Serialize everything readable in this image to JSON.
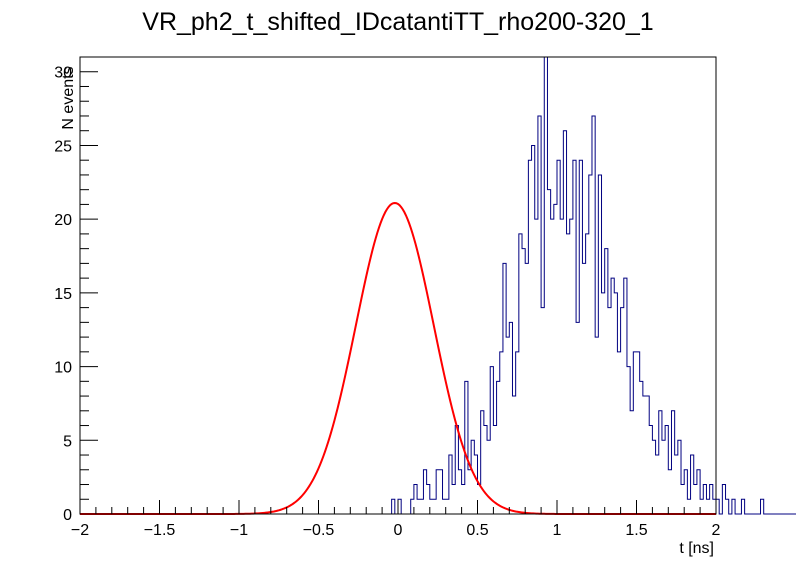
{
  "chart_data": {
    "type": "histogram",
    "title": "VR_ph2_t_shifted_IDcatantiTT_rho200-320_1",
    "xlabel": "t [ns]",
    "ylabel": "N events",
    "xlim": [
      -2,
      2
    ],
    "ylim": [
      0,
      31
    ],
    "grid": false,
    "x_ticks": [
      -2,
      -1.5,
      -1,
      -0.5,
      0,
      0.5,
      1,
      1.5,
      2
    ],
    "x_tick_labels": [
      "−2",
      "−1.5",
      "−1",
      "−0.5",
      "0",
      "0.5",
      "1",
      "1.5",
      "2"
    ],
    "y_ticks": [
      0,
      5,
      10,
      15,
      20,
      25,
      30
    ],
    "y_tick_labels": [
      "0",
      "5",
      "10",
      "15",
      "20",
      "25",
      "30"
    ],
    "colors": {
      "histogram": "#000080",
      "fit": "#ff0000"
    },
    "series": [
      {
        "name": "histogram",
        "kind": "step",
        "bin_width": 0.02,
        "x_start": -2,
        "values": [
          0,
          0,
          0,
          0,
          0,
          0,
          0,
          0,
          0,
          0,
          0,
          0,
          0,
          0,
          0,
          0,
          0,
          0,
          0,
          0,
          0,
          0,
          0,
          0,
          0,
          0,
          0,
          0,
          0,
          0,
          0,
          0,
          0,
          0,
          0,
          0,
          0,
          0,
          0,
          0,
          0,
          0,
          0,
          0,
          0,
          0,
          0,
          0,
          0,
          0,
          0,
          0,
          0,
          0,
          0,
          0,
          0,
          0,
          0,
          0,
          0,
          0,
          0,
          0,
          0,
          0,
          0,
          0,
          0,
          0,
          0,
          0,
          0,
          0,
          0,
          0,
          0,
          0,
          0,
          0,
          0,
          0,
          0,
          0,
          0,
          0,
          0,
          0,
          0,
          0,
          0,
          0,
          0,
          0,
          0,
          0,
          0,
          0,
          1,
          0,
          1,
          0,
          0,
          0,
          1,
          2,
          1,
          1,
          3,
          2,
          1,
          1,
          3,
          3,
          1,
          1,
          4,
          2,
          6,
          3,
          2,
          9,
          3,
          5,
          4,
          2,
          7,
          6,
          5,
          10,
          6,
          9,
          11,
          17,
          12,
          13,
          8,
          11,
          19,
          18,
          17,
          24,
          25,
          20,
          27,
          14,
          31,
          22,
          20,
          21,
          24,
          20,
          26,
          19,
          20,
          24,
          13,
          24,
          17,
          19,
          23,
          27,
          12,
          23,
          15,
          18,
          14,
          16,
          15,
          11,
          14,
          16,
          10,
          7,
          11,
          11,
          9,
          8,
          8,
          6,
          5,
          4,
          7,
          5,
          6,
          3,
          7,
          4,
          5,
          2,
          3,
          1,
          4,
          2,
          3,
          1,
          2,
          1,
          2,
          1,
          1,
          0,
          2,
          1,
          0,
          1,
          0,
          0,
          1,
          0,
          0,
          0,
          0,
          0,
          1,
          0,
          0,
          0,
          0,
          0,
          0,
          0,
          0,
          0,
          0,
          0,
          0,
          0,
          0,
          0,
          0,
          0,
          0,
          0,
          0,
          0,
          0,
          0,
          0,
          0,
          0,
          0,
          0,
          0,
          0,
          0,
          0,
          0,
          0,
          0,
          0,
          0,
          0,
          0,
          0,
          0,
          0,
          0,
          0,
          0,
          0,
          0,
          0,
          0,
          0,
          0,
          0,
          0,
          0,
          0,
          0,
          0,
          0,
          0,
          0,
          0,
          0,
          0,
          0,
          0,
          0,
          0,
          0,
          0,
          0,
          0,
          0,
          0,
          0,
          0,
          0,
          0,
          0,
          0,
          0,
          0,
          0,
          0,
          0,
          0
        ]
      },
      {
        "name": "gaussian fit",
        "kind": "curve",
        "function": "gaussian",
        "amplitude": 21.1,
        "mean": -0.02,
        "sigma": 0.245
      }
    ]
  }
}
